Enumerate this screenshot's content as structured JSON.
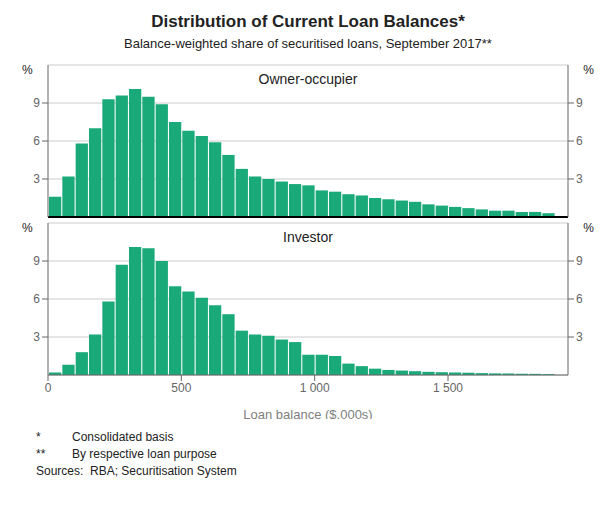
{
  "chart_data": [
    {
      "type": "histogram",
      "title": "Distribution of Current Loan Balances*",
      "subtitle": "Balance-weighted share of securitised loans, September 2017**",
      "annotations": [
        "Owner-occupier"
      ],
      "ylabel": "%",
      "color": "#1aaa7a",
      "grid": true,
      "tick_labels": "y",
      "bins": [
        0,
        50,
        100,
        150,
        200,
        250,
        300,
        350,
        400,
        450,
        500,
        550,
        600,
        650,
        700,
        750,
        800,
        850,
        900,
        950,
        1000,
        1050,
        1100,
        1150,
        1200,
        1250,
        1300,
        1350,
        1400,
        1450,
        1500,
        1550,
        1600,
        1650,
        1700,
        1750,
        1800,
        1850,
        1900
      ],
      "values": [
        1.6,
        3.2,
        5.8,
        7.0,
        9.3,
        9.6,
        10.1,
        9.5,
        8.9,
        7.5,
        6.8,
        6.4,
        5.9,
        4.9,
        3.8,
        3.2,
        3.0,
        2.8,
        2.6,
        2.5,
        2.1,
        2.0,
        1.8,
        1.7,
        1.5,
        1.4,
        1.3,
        1.2,
        1.0,
        0.9,
        0.8,
        0.7,
        0.6,
        0.5,
        0.5,
        0.4,
        0.4,
        0.3
      ],
      "xlim": [
        0,
        1950
      ],
      "ylim": [
        0,
        12
      ],
      "yticks": [
        3,
        6,
        9
      ]
    },
    {
      "type": "histogram",
      "annotations": [
        "Investor"
      ],
      "xlabel": "Loan balance ($,000s)",
      "ylabel": "%",
      "color": "#1aaa7a",
      "grid": true,
      "bins": [
        0,
        50,
        100,
        150,
        200,
        250,
        300,
        350,
        400,
        450,
        500,
        550,
        600,
        650,
        700,
        750,
        800,
        850,
        900,
        950,
        1000,
        1050,
        1100,
        1150,
        1200,
        1250,
        1300,
        1350,
        1400,
        1450,
        1500,
        1550,
        1600,
        1650,
        1700,
        1750,
        1800,
        1850,
        1900
      ],
      "values": [
        0.2,
        0.8,
        1.8,
        3.2,
        5.8,
        8.7,
        10.1,
        10.0,
        9.0,
        7.0,
        6.6,
        6.1,
        5.5,
        4.8,
        3.5,
        3.2,
        3.1,
        2.8,
        2.6,
        1.6,
        1.6,
        1.5,
        0.9,
        0.7,
        0.5,
        0.4,
        0.35,
        0.3,
        0.25,
        0.22,
        0.2,
        0.18,
        0.15,
        0.13,
        0.12,
        0.1,
        0.09,
        0.07
      ],
      "xlim": [
        0,
        1950
      ],
      "ylim": [
        0,
        12
      ],
      "yticks": [
        3,
        6,
        9
      ],
      "xticks": [
        0,
        500,
        {
          "value": 1000,
          "label": "1 000"
        },
        {
          "value": 1500,
          "label": "1 500"
        }
      ],
      "footnotes": [
        [
          "*",
          "Consolidated basis"
        ],
        [
          "**",
          "By respective loan purpose"
        ],
        [
          "Sources:  RBA; Securitisation System"
        ]
      ]
    }
  ]
}
